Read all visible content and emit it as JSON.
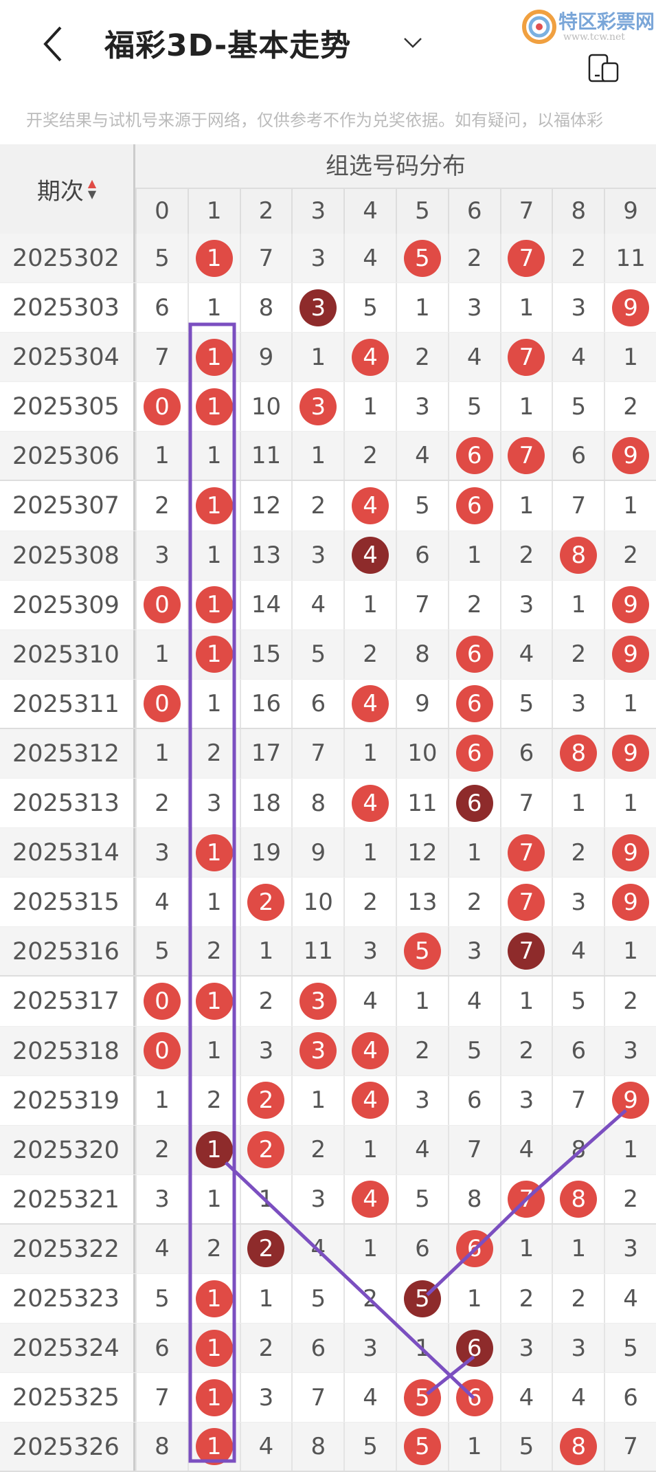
{
  "header": {
    "title": "福彩3D-基本走势",
    "back_icon": "chevron-left-icon",
    "dropdown_icon": "chevron-down-icon",
    "logo_text": "特区彩票网",
    "logo_url": "www.tcw.net"
  },
  "notice": "开奖结果与试机号来源于网络，仅供参考不作为兑奖依据。如有疑问，以福体彩",
  "table": {
    "issue_header": "期次",
    "group_header": "组选号码分布",
    "digits": [
      "0",
      "1",
      "2",
      "3",
      "4",
      "5",
      "6",
      "7",
      "8",
      "9"
    ],
    "colors": {
      "hit": "#e04b45",
      "repeat": "#8e2b2b",
      "overlay": "#7b4fc0"
    },
    "rows": [
      {
        "issue": "2025302",
        "values": [
          "5",
          "1",
          "7",
          "3",
          "4",
          "5",
          "2",
          "7",
          "2",
          "11"
        ],
        "marks": [
          "",
          "hit",
          "",
          "",
          "",
          "hit",
          "",
          "hit",
          "",
          ""
        ]
      },
      {
        "issue": "2025303",
        "values": [
          "6",
          "1",
          "8",
          "3",
          "5",
          "1",
          "3",
          "1",
          "3",
          "9"
        ],
        "marks": [
          "",
          "",
          "",
          "repeat",
          "",
          "",
          "",
          "",
          "",
          "hit"
        ]
      },
      {
        "issue": "2025304",
        "values": [
          "7",
          "1",
          "9",
          "1",
          "4",
          "2",
          "4",
          "7",
          "4",
          "1"
        ],
        "marks": [
          "",
          "hit",
          "",
          "",
          "hit",
          "",
          "",
          "hit",
          "",
          ""
        ]
      },
      {
        "issue": "2025305",
        "values": [
          "0",
          "1",
          "10",
          "3",
          "1",
          "3",
          "5",
          "1",
          "5",
          "2"
        ],
        "marks": [
          "hit",
          "hit",
          "",
          "hit",
          "",
          "",
          "",
          "",
          "",
          ""
        ]
      },
      {
        "issue": "2025306",
        "values": [
          "1",
          "1",
          "11",
          "1",
          "2",
          "4",
          "6",
          "7",
          "6",
          "9"
        ],
        "marks": [
          "",
          "",
          "",
          "",
          "",
          "",
          "hit",
          "hit",
          "",
          "hit"
        ]
      },
      {
        "issue": "2025307",
        "values": [
          "2",
          "1",
          "12",
          "2",
          "4",
          "5",
          "6",
          "1",
          "7",
          "1"
        ],
        "marks": [
          "",
          "hit",
          "",
          "",
          "hit",
          "",
          "hit",
          "",
          "",
          ""
        ]
      },
      {
        "issue": "2025308",
        "values": [
          "3",
          "1",
          "13",
          "3",
          "4",
          "6",
          "1",
          "2",
          "8",
          "2"
        ],
        "marks": [
          "",
          "",
          "",
          "",
          "repeat",
          "",
          "",
          "",
          "hit",
          ""
        ]
      },
      {
        "issue": "2025309",
        "values": [
          "0",
          "1",
          "14",
          "4",
          "1",
          "7",
          "2",
          "3",
          "1",
          "9"
        ],
        "marks": [
          "hit",
          "hit",
          "",
          "",
          "",
          "",
          "",
          "",
          "",
          "hit"
        ]
      },
      {
        "issue": "2025310",
        "values": [
          "1",
          "1",
          "15",
          "5",
          "2",
          "8",
          "6",
          "4",
          "2",
          "9"
        ],
        "marks": [
          "",
          "hit",
          "",
          "",
          "",
          "",
          "hit",
          "",
          "",
          "hit"
        ]
      },
      {
        "issue": "2025311",
        "values": [
          "0",
          "1",
          "16",
          "6",
          "4",
          "9",
          "6",
          "5",
          "3",
          "1"
        ],
        "marks": [
          "hit",
          "",
          "",
          "",
          "hit",
          "",
          "hit",
          "",
          "",
          ""
        ]
      },
      {
        "issue": "2025312",
        "values": [
          "1",
          "2",
          "17",
          "7",
          "1",
          "10",
          "6",
          "6",
          "8",
          "9"
        ],
        "marks": [
          "",
          "",
          "",
          "",
          "",
          "",
          "hit",
          "",
          "hit",
          "hit"
        ]
      },
      {
        "issue": "2025313",
        "values": [
          "2",
          "3",
          "18",
          "8",
          "4",
          "11",
          "6",
          "7",
          "1",
          "1"
        ],
        "marks": [
          "",
          "",
          "",
          "",
          "hit",
          "",
          "repeat",
          "",
          "",
          ""
        ]
      },
      {
        "issue": "2025314",
        "values": [
          "3",
          "1",
          "19",
          "9",
          "1",
          "12",
          "1",
          "7",
          "2",
          "9"
        ],
        "marks": [
          "",
          "hit",
          "",
          "",
          "",
          "",
          "",
          "hit",
          "",
          "hit"
        ]
      },
      {
        "issue": "2025315",
        "values": [
          "4",
          "1",
          "2",
          "10",
          "2",
          "13",
          "2",
          "7",
          "3",
          "9"
        ],
        "marks": [
          "",
          "",
          "hit",
          "",
          "",
          "",
          "",
          "hit",
          "",
          "hit"
        ]
      },
      {
        "issue": "2025316",
        "values": [
          "5",
          "2",
          "1",
          "11",
          "3",
          "5",
          "3",
          "7",
          "4",
          "1"
        ],
        "marks": [
          "",
          "",
          "",
          "",
          "",
          "hit",
          "",
          "repeat",
          "",
          ""
        ]
      },
      {
        "issue": "2025317",
        "values": [
          "0",
          "1",
          "2",
          "3",
          "4",
          "1",
          "4",
          "1",
          "5",
          "2"
        ],
        "marks": [
          "hit",
          "hit",
          "",
          "hit",
          "",
          "",
          "",
          "",
          "",
          ""
        ]
      },
      {
        "issue": "2025318",
        "values": [
          "0",
          "1",
          "3",
          "3",
          "4",
          "2",
          "5",
          "2",
          "6",
          "3"
        ],
        "marks": [
          "hit",
          "",
          "",
          "hit",
          "hit",
          "",
          "",
          "",
          "",
          ""
        ]
      },
      {
        "issue": "2025319",
        "values": [
          "1",
          "2",
          "2",
          "1",
          "4",
          "3",
          "6",
          "3",
          "7",
          "9"
        ],
        "marks": [
          "",
          "",
          "hit",
          "",
          "hit",
          "",
          "",
          "",
          "",
          "hit"
        ]
      },
      {
        "issue": "2025320",
        "values": [
          "2",
          "1",
          "2",
          "2",
          "1",
          "4",
          "7",
          "4",
          "8",
          "1"
        ],
        "marks": [
          "",
          "repeat",
          "hit",
          "",
          "",
          "",
          "",
          "",
          "",
          ""
        ]
      },
      {
        "issue": "2025321",
        "values": [
          "3",
          "1",
          "1",
          "3",
          "4",
          "5",
          "8",
          "7",
          "8",
          "2"
        ],
        "marks": [
          "",
          "",
          "",
          "",
          "hit",
          "",
          "",
          "hit",
          "hit",
          ""
        ]
      },
      {
        "issue": "2025322",
        "values": [
          "4",
          "2",
          "2",
          "4",
          "1",
          "6",
          "6",
          "1",
          "1",
          "3"
        ],
        "marks": [
          "",
          "",
          "repeat",
          "",
          "",
          "",
          "hit",
          "",
          "",
          ""
        ]
      },
      {
        "issue": "2025323",
        "values": [
          "5",
          "1",
          "1",
          "5",
          "2",
          "5",
          "1",
          "2",
          "2",
          "4"
        ],
        "marks": [
          "",
          "hit",
          "",
          "",
          "",
          "repeat",
          "",
          "",
          "",
          ""
        ]
      },
      {
        "issue": "2025324",
        "values": [
          "6",
          "1",
          "2",
          "6",
          "3",
          "1",
          "6",
          "3",
          "3",
          "5"
        ],
        "marks": [
          "",
          "hit",
          "",
          "",
          "",
          "",
          "repeat",
          "",
          "",
          ""
        ]
      },
      {
        "issue": "2025325",
        "values": [
          "7",
          "1",
          "3",
          "7",
          "4",
          "5",
          "6",
          "4",
          "4",
          "6"
        ],
        "marks": [
          "",
          "hit",
          "",
          "",
          "",
          "hit",
          "hit",
          "",
          "",
          ""
        ]
      },
      {
        "issue": "2025326",
        "values": [
          "8",
          "1",
          "4",
          "8",
          "5",
          "5",
          "1",
          "5",
          "8",
          "7"
        ],
        "marks": [
          "",
          "hit",
          "",
          "",
          "",
          "hit",
          "",
          "",
          "hit",
          ""
        ]
      }
    ]
  }
}
